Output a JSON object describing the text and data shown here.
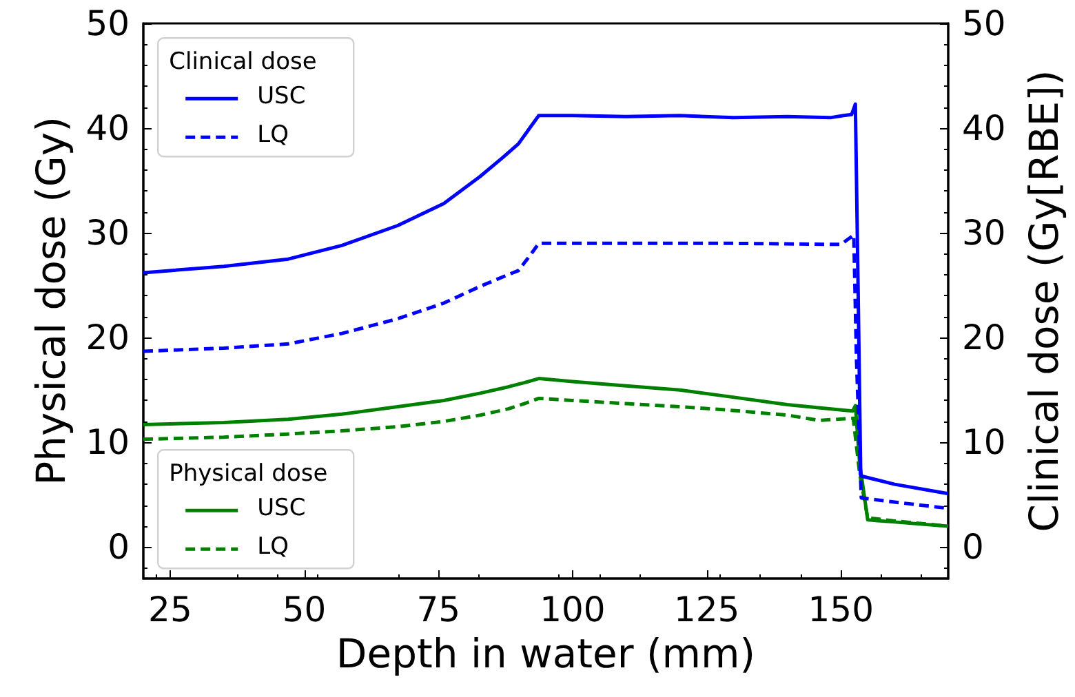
{
  "chart_data": {
    "type": "line",
    "xlabel": "Depth in water (mm)",
    "ylabel": "Physical dose (Gy)",
    "y2label": "Clinical dose (Gy[RBE])",
    "xlim": [
      20,
      170
    ],
    "xticks": [
      25,
      50,
      75,
      100,
      125,
      150
    ],
    "ylim": [
      -3,
      50
    ],
    "yticks": [
      0,
      10,
      20,
      30,
      40,
      50
    ],
    "y2lim": [
      -3,
      50
    ],
    "y2ticks": [
      0,
      10,
      20,
      30,
      40,
      50
    ],
    "legend": [
      "top left",
      "bottom left"
    ],
    "legend_title": [
      "Clinical dose",
      "Physical dose"
    ],
    "grid": false,
    "marker": "none",
    "series": [
      {
        "name": "USC",
        "color": "#0000ff",
        "axis": "y2",
        "line_style": "solid",
        "x": [
          20,
          35,
          47,
          57,
          67.4,
          76,
          82.8,
          87,
          89.9,
          92,
          93.7,
          100,
          110,
          120,
          130,
          140,
          148,
          150.5,
          152,
          152.7,
          153.2,
          153.7,
          160,
          170
        ],
        "values": [
          26.2,
          26.8,
          27.5,
          28.8,
          30.7,
          32.8,
          35.4,
          37.2,
          38.5,
          40.0,
          41.2,
          41.2,
          41.1,
          41.2,
          41.0,
          41.1,
          41.0,
          41.2,
          41.3,
          42.3,
          25,
          6.8,
          6.0,
          5.1
        ]
      },
      {
        "name": "LQ",
        "color": "#0000ff",
        "axis": "y2",
        "line_style": "dashed",
        "x": [
          20,
          35,
          47,
          57,
          67.4,
          76,
          82.8,
          87,
          89.9,
          92,
          93.7,
          110,
          130,
          150,
          152.4,
          152.9,
          153.8,
          160,
          170
        ],
        "values": [
          18.7,
          19.0,
          19.4,
          20.4,
          21.8,
          23.3,
          24.9,
          25.8,
          26.4,
          27.8,
          29.0,
          29.0,
          29.0,
          28.9,
          29.8,
          18,
          4.7,
          4.3,
          3.7
        ]
      },
      {
        "name": "USC",
        "color": "#008000",
        "axis": "y",
        "line_style": "solid",
        "x": [
          20,
          35,
          47,
          57,
          67.4,
          76,
          82.8,
          88,
          91,
          93.7,
          100,
          110,
          120,
          128.7,
          140,
          150.1,
          152.2,
          152.7,
          153.5,
          155,
          160,
          170
        ],
        "values": [
          11.7,
          11.9,
          12.2,
          12.7,
          13.4,
          14.0,
          14.7,
          15.3,
          15.7,
          16.1,
          15.8,
          15.4,
          15.0,
          14.4,
          13.6,
          13.1,
          13.0,
          13.5,
          8,
          2.6,
          2.4,
          2.0
        ]
      },
      {
        "name": "LQ",
        "color": "#008000",
        "axis": "y",
        "line_style": "dashed",
        "x": [
          20,
          35,
          47,
          57,
          67.4,
          76,
          82.8,
          88,
          91,
          93.7,
          100,
          110,
          120,
          128.7,
          140,
          146,
          152.3,
          153.5,
          155,
          160,
          170
        ],
        "values": [
          10.3,
          10.5,
          10.8,
          11.1,
          11.5,
          12.0,
          12.6,
          13.2,
          13.7,
          14.2,
          14.0,
          13.7,
          13.4,
          13.1,
          12.6,
          12.1,
          12.3,
          7,
          2.8,
          2.5,
          2.0
        ]
      }
    ]
  }
}
